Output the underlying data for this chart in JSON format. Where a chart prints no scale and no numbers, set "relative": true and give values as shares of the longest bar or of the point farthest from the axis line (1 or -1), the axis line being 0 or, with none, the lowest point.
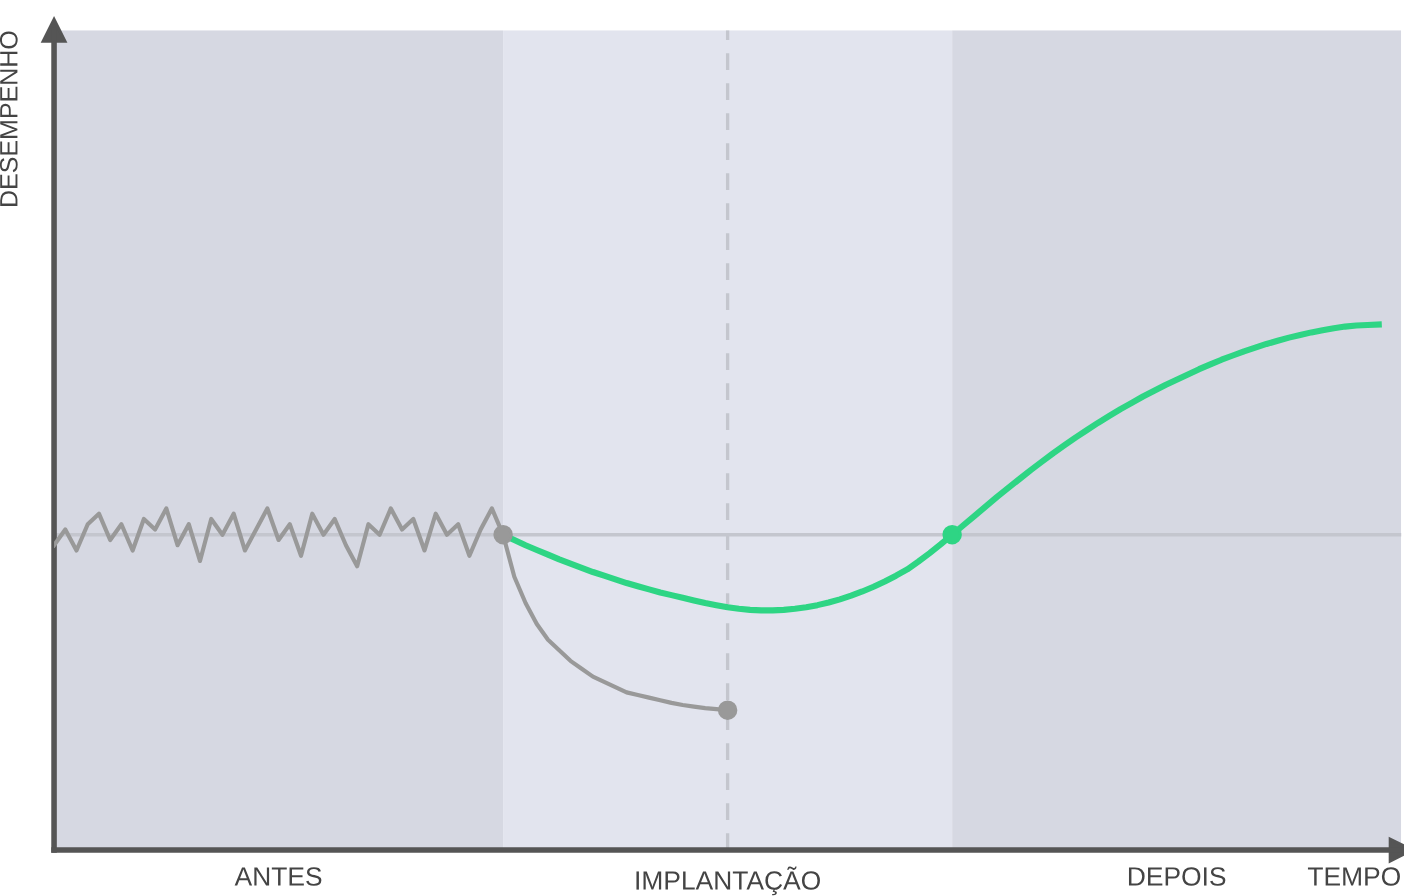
{
  "chart_data": {
    "type": "line",
    "relative": true,
    "xlabel": "TEMPO",
    "ylabel": "DESEMPENHO",
    "line_style": "solid",
    "categories": [
      null,
      null,
      null,
      null,
      null,
      null,
      null,
      null,
      null,
      null,
      null,
      null,
      null,
      null,
      null,
      null,
      null,
      null,
      null,
      null,
      null,
      null,
      null,
      null,
      null,
      null,
      null,
      null,
      null,
      null,
      null,
      null,
      null,
      null,
      null,
      null,
      null,
      null,
      null,
      null,
      null,
      null,
      null,
      null,
      null,
      null,
      null,
      null,
      null,
      null,
      null,
      null,
      null,
      null,
      null,
      null,
      null,
      null,
      null,
      null,
      null,
      null,
      null,
      null,
      null,
      null,
      null,
      null,
      null,
      null,
      null,
      null,
      null,
      null,
      null,
      null,
      null,
      null,
      null,
      null,
      null,
      null,
      null,
      null,
      null,
      null,
      null,
      null,
      null,
      null,
      null,
      null,
      null,
      null,
      null,
      null,
      null,
      null,
      null,
      null,
      null,
      null,
      null,
      null,
      null,
      null,
      null,
      null,
      null,
      null,
      null,
      null,
      null,
      null,
      null,
      null,
      null,
      null,
      null,
      null,
      null
    ],
    "series": [
      {
        "color": "#999999",
        "marker": "none",
        "values": [
          0.58,
          0.61,
          0.57,
          0.62,
          0.64,
          0.59,
          0.62,
          0.57,
          0.63,
          0.61,
          0.65,
          0.58,
          0.62,
          0.55,
          0.63,
          0.6,
          0.64,
          0.57,
          0.61,
          0.65,
          0.59,
          0.62,
          0.56,
          0.64,
          0.6,
          0.63,
          0.58,
          0.54,
          0.62,
          0.6,
          0.65,
          0.61,
          0.63,
          0.57,
          0.64,
          0.6,
          0.62,
          0.56,
          0.61,
          0.65,
          0.6,
          null,
          null,
          null,
          null,
          null,
          null,
          null,
          null,
          null,
          null,
          null,
          null,
          null,
          null,
          null,
          null,
          null,
          null,
          null,
          null,
          null,
          null,
          null,
          null,
          null,
          null,
          null,
          null,
          null,
          null,
          null,
          null,
          null,
          null,
          null,
          null,
          null,
          null,
          null,
          null,
          null,
          null,
          null,
          null,
          null,
          null,
          null,
          null,
          null,
          null,
          null,
          null,
          null,
          null,
          null,
          null,
          null,
          null,
          null,
          null,
          null,
          null,
          null,
          null,
          null,
          null,
          null,
          null,
          null,
          null,
          null,
          null,
          null,
          null,
          null,
          null,
          null,
          null,
          null,
          null
        ]
      },
      {
        "color": "#999999",
        "marker": "none",
        "values": [
          null,
          null,
          null,
          null,
          null,
          null,
          null,
          null,
          null,
          null,
          null,
          null,
          null,
          null,
          null,
          null,
          null,
          null,
          null,
          null,
          null,
          null,
          null,
          null,
          null,
          null,
          null,
          null,
          null,
          null,
          null,
          null,
          null,
          null,
          null,
          null,
          null,
          null,
          null,
          null,
          0.6,
          0.52,
          0.47,
          0.43,
          0.4,
          0.38,
          0.36,
          0.345,
          0.33,
          0.32,
          0.31,
          0.3,
          0.295,
          0.29,
          0.285,
          0.28,
          0.276,
          0.273,
          0.27,
          0.268,
          0.266,
          null,
          null,
          null,
          null,
          null,
          null,
          null,
          null,
          null,
          null,
          null,
          null,
          null,
          null,
          null,
          null,
          null,
          null,
          null,
          null,
          null,
          null,
          null,
          null,
          null,
          null,
          null,
          null,
          null,
          null,
          null,
          null,
          null,
          null,
          null,
          null,
          null,
          null,
          null,
          null,
          null,
          null,
          null,
          null,
          null,
          null,
          null,
          null,
          null,
          null,
          null,
          null,
          null,
          null,
          null,
          null,
          null,
          null,
          null,
          null
        ]
      },
      {
        "color": "#2ed584",
        "marker": "none",
        "values": [
          null,
          null,
          null,
          null,
          null,
          null,
          null,
          null,
          null,
          null,
          null,
          null,
          null,
          null,
          null,
          null,
          null,
          null,
          null,
          null,
          null,
          null,
          null,
          null,
          null,
          null,
          null,
          null,
          null,
          null,
          null,
          null,
          null,
          null,
          null,
          null,
          null,
          null,
          null,
          null,
          0.6,
          0.59,
          0.58,
          0.571,
          0.562,
          0.553,
          0.545,
          0.537,
          0.529,
          0.522,
          0.515,
          0.508,
          0.502,
          0.496,
          0.49,
          0.485,
          0.48,
          0.475,
          0.47,
          0.466,
          0.462,
          0.459,
          0.457,
          0.456,
          0.456,
          0.457,
          0.459,
          0.462,
          0.466,
          0.471,
          0.477,
          0.484,
          0.492,
          0.501,
          0.511,
          0.522,
          0.534,
          0.549,
          0.565,
          0.582,
          0.6,
          0.618,
          0.636,
          0.654,
          0.672,
          0.689,
          0.706,
          0.723,
          0.739,
          0.755,
          0.77,
          0.785,
          0.799,
          0.813,
          0.826,
          0.839,
          0.851,
          0.863,
          0.874,
          0.885,
          0.895,
          0.905,
          0.915,
          0.924,
          0.933,
          0.941,
          0.949,
          0.956,
          0.963,
          0.969,
          0.975,
          0.98,
          0.985,
          0.989,
          0.993,
          0.996,
          0.998,
          0.999,
          1.0,
          null,
          null
        ]
      }
    ],
    "ref_lines": [
      {
        "axis": "y",
        "value": 0.6,
        "color": "#c4c6ce",
        "line_style": "solid"
      }
    ],
    "annotations": [
      "ANTES",
      "IMPLANTAÇÃO",
      "DEPOIS"
    ]
  }
}
